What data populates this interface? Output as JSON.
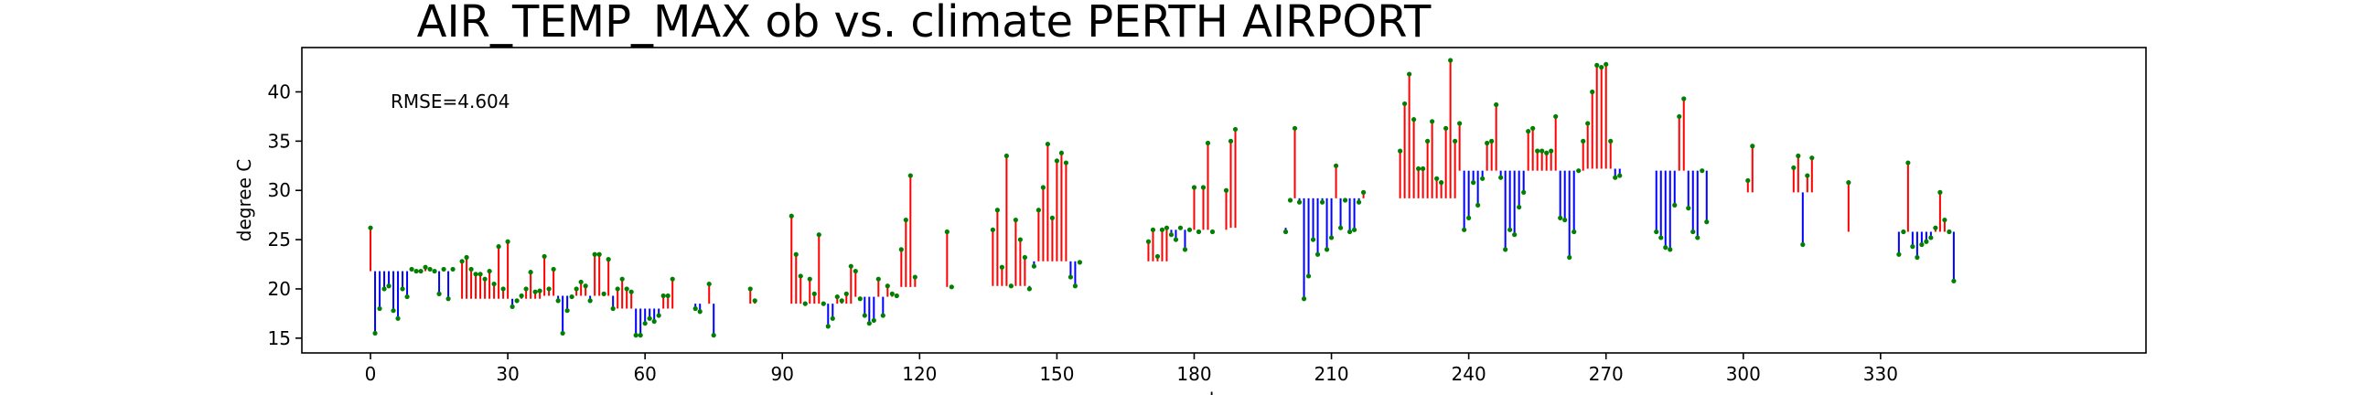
{
  "chart_data": {
    "type": "lollipop",
    "title": "AIR_TEMP_MAX  ob vs. climate  PERTH AIRPORT",
    "xlabel": "day",
    "ylabel": "degree C",
    "annotation": "RMSE=4.604",
    "xlim": [
      -15,
      388
    ],
    "ylim": [
      13.5,
      44.5
    ],
    "xticks": [
      0,
      30,
      60,
      90,
      120,
      150,
      180,
      210,
      240,
      270,
      300,
      330
    ],
    "yticks": [
      15,
      20,
      25,
      30,
      35,
      40
    ],
    "colors": {
      "above": "#ff0000",
      "below": "#0000ff",
      "obs_marker": "#008000"
    },
    "climate_segments": [
      {
        "x0": 0,
        "x1": 18,
        "clim": 21.8
      },
      {
        "x0": 19,
        "x1": 37,
        "clim": 19.0
      },
      {
        "x0": 38,
        "x1": 53,
        "clim": 19.3
      },
      {
        "x0": 54,
        "x1": 67,
        "clim": 18.0
      },
      {
        "x0": 68,
        "x1": 90,
        "clim": 18.5
      },
      {
        "x0": 91,
        "x1": 105,
        "clim": 18.5
      },
      {
        "x0": 106,
        "x1": 115,
        "clim": 19.2
      },
      {
        "x0": 116,
        "x1": 134,
        "clim": 20.2
      },
      {
        "x0": 135,
        "x1": 144,
        "clim": 20.3
      },
      {
        "x0": 145,
        "x1": 160,
        "clim": 22.8
      },
      {
        "x0": 161,
        "x1": 174,
        "clim": 22.8
      },
      {
        "x0": 175,
        "x1": 187,
        "clim": 26.0
      },
      {
        "x0": 188,
        "x1": 200,
        "clim": 26.2
      },
      {
        "x0": 201,
        "x1": 217,
        "clim": 29.2
      },
      {
        "x0": 218,
        "x1": 237,
        "clim": 29.2
      },
      {
        "x0": 238,
        "x1": 265,
        "clim": 32.0
      },
      {
        "x0": 266,
        "x1": 279,
        "clim": 32.2
      },
      {
        "x0": 280,
        "x1": 296,
        "clim": 32.0
      },
      {
        "x0": 297,
        "x1": 320,
        "clim": 29.8
      },
      {
        "x0": 321,
        "x1": 329,
        "clim": 25.8
      },
      {
        "x0": 330,
        "x1": 346,
        "clim": 25.8
      }
    ],
    "observations": [
      [
        0,
        26.2
      ],
      [
        1,
        15.5
      ],
      [
        2,
        18.0
      ],
      [
        3,
        20.0
      ],
      [
        4,
        20.3
      ],
      [
        5,
        17.8
      ],
      [
        6,
        17.0
      ],
      [
        7,
        20.0
      ],
      [
        8,
        19.2
      ],
      [
        9,
        22.0
      ],
      [
        10,
        21.8
      ],
      [
        11,
        21.8
      ],
      [
        12,
        22.2
      ],
      [
        13,
        22.0
      ],
      [
        14,
        21.8
      ],
      [
        15,
        19.5
      ],
      [
        16,
        22.0
      ],
      [
        17,
        19.0
      ],
      [
        18,
        22.0
      ],
      [
        20,
        22.8
      ],
      [
        21,
        23.2
      ],
      [
        22,
        22.0
      ],
      [
        23,
        21.5
      ],
      [
        24,
        21.5
      ],
      [
        25,
        21.0
      ],
      [
        26,
        21.8
      ],
      [
        27,
        20.5
      ],
      [
        28,
        24.3
      ],
      [
        29,
        20.0
      ],
      [
        30,
        24.8
      ],
      [
        31,
        18.2
      ],
      [
        32,
        18.8
      ],
      [
        33,
        19.3
      ],
      [
        34,
        20.0
      ],
      [
        35,
        21.7
      ],
      [
        36,
        19.7
      ],
      [
        37,
        19.8
      ],
      [
        38,
        23.3
      ],
      [
        39,
        20.0
      ],
      [
        40,
        22.0
      ],
      [
        41,
        18.8
      ],
      [
        42,
        15.5
      ],
      [
        43,
        17.8
      ],
      [
        44,
        19.2
      ],
      [
        45,
        20.0
      ],
      [
        46,
        20.7
      ],
      [
        47,
        20.3
      ],
      [
        48,
        18.8
      ],
      [
        49,
        23.5
      ],
      [
        50,
        23.5
      ],
      [
        51,
        19.5
      ],
      [
        52,
        23.0
      ],
      [
        53,
        18.0
      ],
      [
        54,
        20.0
      ],
      [
        55,
        21.0
      ],
      [
        56,
        20.0
      ],
      [
        57,
        19.7
      ],
      [
        58,
        15.3
      ],
      [
        59,
        15.3
      ],
      [
        60,
        16.5
      ],
      [
        61,
        17.0
      ],
      [
        62,
        16.7
      ],
      [
        63,
        17.3
      ],
      [
        64,
        19.3
      ],
      [
        65,
        19.3
      ],
      [
        66,
        21.0
      ],
      [
        71,
        18.0
      ],
      [
        72,
        17.7
      ],
      [
        74,
        20.5
      ],
      [
        75,
        15.3
      ],
      [
        83,
        20.0
      ],
      [
        84,
        18.8
      ],
      [
        92,
        27.4
      ],
      [
        93,
        23.5
      ],
      [
        94,
        21.3
      ],
      [
        95,
        18.5
      ],
      [
        96,
        21.0
      ],
      [
        97,
        19.5
      ],
      [
        98,
        25.5
      ],
      [
        99,
        18.5
      ],
      [
        100,
        16.2
      ],
      [
        101,
        17.0
      ],
      [
        102,
        19.2
      ],
      [
        103,
        18.8
      ],
      [
        104,
        19.5
      ],
      [
        105,
        22.3
      ],
      [
        106,
        21.8
      ],
      [
        107,
        19.0
      ],
      [
        108,
        17.3
      ],
      [
        109,
        16.5
      ],
      [
        110,
        16.8
      ],
      [
        111,
        21.0
      ],
      [
        112,
        17.3
      ],
      [
        113,
        20.3
      ],
      [
        114,
        19.5
      ],
      [
        115,
        19.3
      ],
      [
        116,
        24.0
      ],
      [
        117,
        27.0
      ],
      [
        118,
        31.5
      ],
      [
        119,
        21.2
      ],
      [
        126,
        25.8
      ],
      [
        127,
        20.2
      ],
      [
        136,
        26.0
      ],
      [
        137,
        28.0
      ],
      [
        138,
        22.2
      ],
      [
        139,
        33.5
      ],
      [
        140,
        20.3
      ],
      [
        141,
        27.0
      ],
      [
        142,
        25.0
      ],
      [
        143,
        23.2
      ],
      [
        144,
        20.0
      ],
      [
        145,
        22.3
      ],
      [
        146,
        28.0
      ],
      [
        147,
        30.3
      ],
      [
        148,
        34.7
      ],
      [
        149,
        27.2
      ],
      [
        150,
        33.0
      ],
      [
        151,
        33.8
      ],
      [
        152,
        32.8
      ],
      [
        153,
        21.2
      ],
      [
        154,
        20.3
      ],
      [
        155,
        22.7
      ],
      [
        170,
        24.8
      ],
      [
        171,
        26.0
      ],
      [
        172,
        23.3
      ],
      [
        173,
        26.0
      ],
      [
        174,
        26.2
      ],
      [
        175,
        25.5
      ],
      [
        176,
        25.0
      ],
      [
        177,
        26.2
      ],
      [
        178,
        24.0
      ],
      [
        179,
        26.0
      ],
      [
        180,
        30.3
      ],
      [
        181,
        25.8
      ],
      [
        182,
        30.3
      ],
      [
        183,
        34.8
      ],
      [
        184,
        25.8
      ],
      [
        187,
        30.0
      ],
      [
        188,
        35.0
      ],
      [
        189,
        36.2
      ],
      [
        200,
        25.8
      ],
      [
        201,
        29.0
      ],
      [
        202,
        36.3
      ],
      [
        203,
        28.8
      ],
      [
        204,
        19.0
      ],
      [
        205,
        21.3
      ],
      [
        206,
        25.0
      ],
      [
        207,
        23.5
      ],
      [
        208,
        28.8
      ],
      [
        209,
        24.0
      ],
      [
        210,
        25.2
      ],
      [
        211,
        32.5
      ],
      [
        212,
        26.2
      ],
      [
        213,
        29.0
      ],
      [
        214,
        25.8
      ],
      [
        215,
        26.0
      ],
      [
        216,
        28.8
      ],
      [
        217,
        29.8
      ],
      [
        225,
        34.0
      ],
      [
        226,
        38.8
      ],
      [
        227,
        41.8
      ],
      [
        228,
        37.2
      ],
      [
        229,
        32.2
      ],
      [
        230,
        32.2
      ],
      [
        231,
        35.0
      ],
      [
        232,
        37.0
      ],
      [
        233,
        31.2
      ],
      [
        234,
        30.8
      ],
      [
        235,
        36.3
      ],
      [
        236,
        43.2
      ],
      [
        237,
        35.0
      ],
      [
        238,
        36.8
      ],
      [
        239,
        26.0
      ],
      [
        240,
        27.2
      ],
      [
        241,
        30.8
      ],
      [
        242,
        28.5
      ],
      [
        243,
        31.2
      ],
      [
        244,
        34.8
      ],
      [
        245,
        35.0
      ],
      [
        246,
        38.7
      ],
      [
        247,
        31.3
      ],
      [
        248,
        24.0
      ],
      [
        249,
        26.0
      ],
      [
        250,
        25.5
      ],
      [
        251,
        28.3
      ],
      [
        252,
        29.8
      ],
      [
        253,
        36.0
      ],
      [
        254,
        36.3
      ],
      [
        255,
        34.0
      ],
      [
        256,
        34.0
      ],
      [
        257,
        33.8
      ],
      [
        258,
        34.0
      ],
      [
        259,
        37.5
      ],
      [
        260,
        27.2
      ],
      [
        261,
        27.0
      ],
      [
        262,
        23.2
      ],
      [
        263,
        25.8
      ],
      [
        264,
        32.0
      ],
      [
        265,
        35.0
      ],
      [
        266,
        36.8
      ],
      [
        267,
        40.0
      ],
      [
        268,
        42.7
      ],
      [
        269,
        42.5
      ],
      [
        270,
        42.8
      ],
      [
        271,
        35.0
      ],
      [
        272,
        31.3
      ],
      [
        273,
        31.5
      ],
      [
        281,
        25.8
      ],
      [
        282,
        25.2
      ],
      [
        283,
        24.2
      ],
      [
        284,
        24.0
      ],
      [
        285,
        28.5
      ],
      [
        286,
        37.5
      ],
      [
        287,
        39.3
      ],
      [
        288,
        28.2
      ],
      [
        289,
        25.8
      ],
      [
        290,
        25.2
      ],
      [
        291,
        32.0
      ],
      [
        292,
        26.8
      ],
      [
        301,
        31.0
      ],
      [
        302,
        34.5
      ],
      [
        311,
        32.3
      ],
      [
        312,
        33.5
      ],
      [
        313,
        24.5
      ],
      [
        314,
        31.5
      ],
      [
        315,
        33.3
      ],
      [
        323,
        30.8
      ],
      [
        334,
        23.5
      ],
      [
        335,
        25.8
      ],
      [
        336,
        32.8
      ],
      [
        337,
        24.3
      ],
      [
        338,
        23.2
      ],
      [
        339,
        24.5
      ],
      [
        340,
        24.8
      ],
      [
        341,
        25.2
      ],
      [
        342,
        26.2
      ],
      [
        343,
        29.8
      ],
      [
        344,
        27.0
      ],
      [
        345,
        25.8
      ],
      [
        346,
        20.8
      ]
    ]
  }
}
